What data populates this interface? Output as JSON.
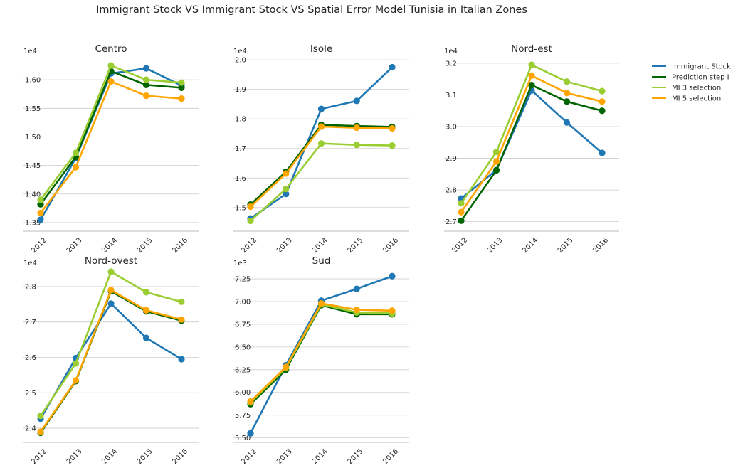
{
  "figure_title": "Immigrant Stock VS Immigrant Stock VS Spatial Error Model Tunisia in Italian Zones",
  "legend_entries": [
    "Immigrant Stock",
    "Prediction step I",
    "MI 3 selection",
    "MI 5 selection"
  ],
  "colors": {
    "Immigrant Stock": "#1f77b4",
    "Prediction step I": "#006400",
    "MI 3 selection": "#9acd32",
    "MI 5 selection": "#ffa500"
  },
  "chart_data": [
    {
      "type": "line",
      "title": "Centro",
      "exponent_label": "1e4",
      "scale": 10000,
      "categories": [
        "2012",
        "2013",
        "2014",
        "2015",
        "2016"
      ],
      "ylim": [
        1.335,
        1.64
      ],
      "yticks": [
        "1.35",
        "1.40",
        "1.45",
        "1.50",
        "1.55",
        "1.60"
      ],
      "grid": true,
      "series": [
        {
          "name": "Immigrant Stock",
          "values": [
            1.355,
            1.463,
            1.611,
            1.62,
            1.59
          ]
        },
        {
          "name": "Prediction step I",
          "values": [
            1.382,
            1.465,
            1.615,
            1.591,
            1.586
          ]
        },
        {
          "name": "MI 3 selection",
          "values": [
            1.39,
            1.472,
            1.625,
            1.6,
            1.595
          ]
        },
        {
          "name": "MI 5 selection",
          "values": [
            1.367,
            1.447,
            1.597,
            1.572,
            1.567
          ]
        }
      ]
    },
    {
      "type": "line",
      "title": "Isole",
      "exponent_label": "1e4",
      "scale": 10000,
      "categories": [
        "2012",
        "2013",
        "2014",
        "2015",
        "2016"
      ],
      "ylim": [
        1.42,
        2.01
      ],
      "yticks": [
        "1.5",
        "1.6",
        "1.7",
        "1.8",
        "1.9",
        "2.0"
      ],
      "grid": true,
      "series": [
        {
          "name": "Immigrant Stock",
          "values": [
            1.463,
            1.546,
            1.834,
            1.861,
            1.975
          ]
        },
        {
          "name": "Prediction step I",
          "values": [
            1.51,
            1.621,
            1.78,
            1.776,
            1.773
          ]
        },
        {
          "name": "MI 3 selection",
          "values": [
            1.455,
            1.563,
            1.717,
            1.712,
            1.71
          ]
        },
        {
          "name": "MI 5 selection",
          "values": [
            1.503,
            1.615,
            1.774,
            1.77,
            1.768
          ]
        }
      ]
    },
    {
      "type": "line",
      "title": "Nord-est",
      "exponent_label": "1e4",
      "scale": 10000,
      "categories": [
        "2012",
        "2013",
        "2014",
        "2015",
        "2016"
      ],
      "ylim": [
        2.67,
        3.22
      ],
      "yticks": [
        "2.7",
        "2.8",
        "2.9",
        "3.0",
        "3.1",
        "3.2"
      ],
      "grid": true,
      "series": [
        {
          "name": "Immigrant Stock",
          "values": [
            2.773,
            2.863,
            3.114,
            3.013,
            2.917
          ]
        },
        {
          "name": "Prediction step I",
          "values": [
            2.703,
            2.862,
            3.131,
            3.079,
            3.05
          ]
        },
        {
          "name": "MI 3 selection",
          "values": [
            2.758,
            2.92,
            3.195,
            3.142,
            3.112
          ]
        },
        {
          "name": "MI 5 selection",
          "values": [
            2.73,
            2.89,
            3.161,
            3.106,
            3.079
          ]
        }
      ]
    },
    {
      "type": "line",
      "title": "Nord-ovest",
      "exponent_label": "1e4",
      "scale": 10000,
      "categories": [
        "2012",
        "2013",
        "2014",
        "2015",
        "2016"
      ],
      "ylim": [
        2.36,
        2.85
      ],
      "yticks": [
        "2.4",
        "2.5",
        "2.6",
        "2.7",
        "2.8"
      ],
      "grid": true,
      "series": [
        {
          "name": "Immigrant Stock",
          "values": [
            2.427,
            2.598,
            2.752,
            2.655,
            2.595
          ]
        },
        {
          "name": "Prediction step I",
          "values": [
            2.387,
            2.533,
            2.787,
            2.73,
            2.704
          ]
        },
        {
          "name": "MI 3 selection",
          "values": [
            2.435,
            2.583,
            2.842,
            2.784,
            2.757
          ]
        },
        {
          "name": "MI 5 selection",
          "values": [
            2.39,
            2.535,
            2.79,
            2.733,
            2.707
          ]
        }
      ]
    },
    {
      "type": "line",
      "title": "Sud",
      "exponent_label": "1e3",
      "scale": 1000,
      "categories": [
        "2012",
        "2013",
        "2014",
        "2015",
        "2016"
      ],
      "ylim": [
        5.45,
        7.36
      ],
      "yticks": [
        "5.50",
        "5.75",
        "6.00",
        "6.25",
        "6.50",
        "6.75",
        "7.00",
        "7.25"
      ],
      "grid": true,
      "series": [
        {
          "name": "Immigrant Stock",
          "values": [
            5.55,
            6.3,
            7.01,
            7.14,
            7.28
          ]
        },
        {
          "name": "Prediction step I",
          "values": [
            5.87,
            6.25,
            6.96,
            6.86,
            6.86
          ]
        },
        {
          "name": "MI 3 selection",
          "values": [
            5.89,
            6.27,
            6.97,
            6.88,
            6.87
          ]
        },
        {
          "name": "MI 5 selection",
          "values": [
            5.9,
            6.28,
            6.98,
            6.91,
            6.9
          ]
        }
      ]
    }
  ]
}
